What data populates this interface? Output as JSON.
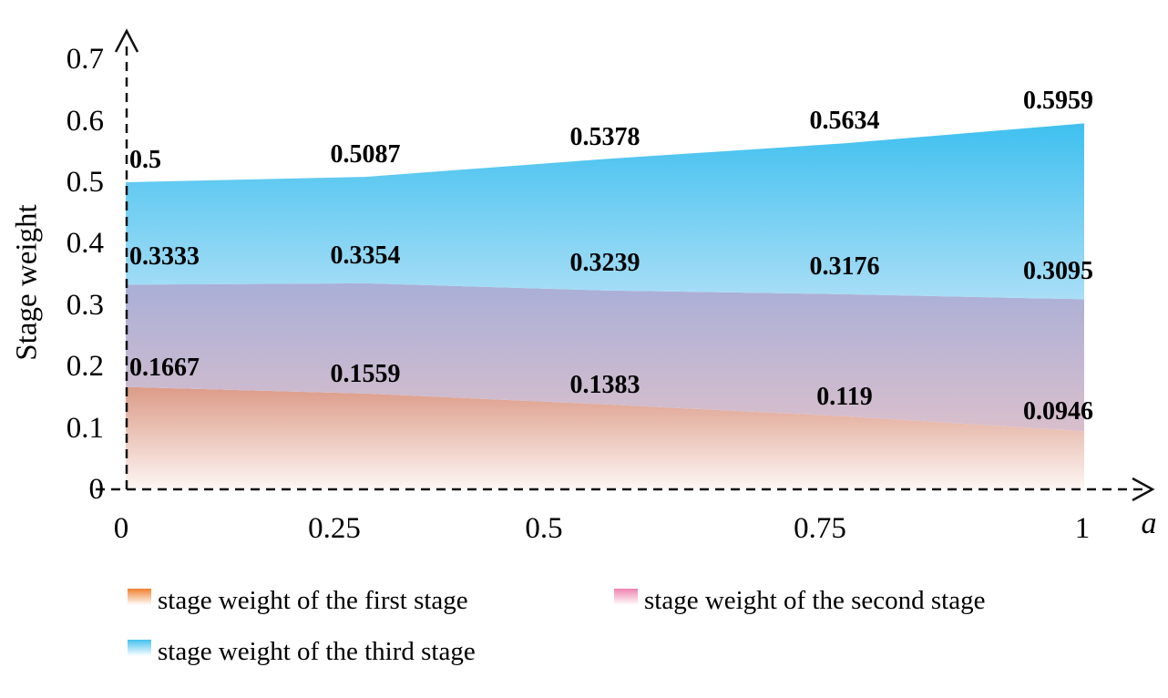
{
  "chart_data": {
    "type": "area",
    "title": "",
    "xlabel": "a",
    "ylabel": "Stage weight",
    "x": [
      0,
      0.25,
      0.5,
      0.75,
      1
    ],
    "xtick_labels": [
      "0",
      "0.25",
      "0.5",
      "0.75",
      "1"
    ],
    "yticks": [
      0,
      0.1,
      0.2,
      0.3,
      0.4,
      0.5,
      0.6,
      0.7
    ],
    "ytick_labels": [
      "0",
      "0.1",
      "0.2",
      "0.3",
      "0.4",
      "0.5",
      "0.6",
      "0.7"
    ],
    "ylim": [
      0,
      0.7
    ],
    "xlim": [
      0,
      1
    ],
    "grid": false,
    "legend_position": "bottom",
    "axis_style": "dashed-with-arrowheads",
    "series": [
      {
        "name": "stage weight of the first stage",
        "color": "#f0812f",
        "values": [
          0.1667,
          0.1559,
          0.1383,
          0.119,
          0.0946
        ],
        "point_labels": [
          "0.1667",
          "0.1559",
          "0.1383",
          "0.119",
          "0.0946"
        ]
      },
      {
        "name": "stage weight of the second stage",
        "color": "#ee83ae",
        "values": [
          0.3333,
          0.3354,
          0.3239,
          0.3176,
          0.3095
        ],
        "point_labels": [
          "0.3333",
          "0.3354",
          "0.3239",
          "0.3176",
          "0.3095"
        ]
      },
      {
        "name": "stage weight of the third stage",
        "color": "#45c1ef",
        "values": [
          0.5,
          0.5087,
          0.5378,
          0.5634,
          0.5959
        ],
        "point_labels": [
          "0.5",
          "0.5087",
          "0.5378",
          "0.5634",
          "0.5959"
        ]
      }
    ],
    "band_fills": [
      {
        "top_color": "#dc9b88",
        "bottom_color": "#fdf6f3"
      },
      {
        "top_color": "#a9afd7",
        "bottom_color": "#d9bfcc"
      },
      {
        "top_color": "#3fc0ef",
        "bottom_color": "#a9def6"
      }
    ],
    "axis_color": "#111111",
    "label_color": "#000000"
  }
}
